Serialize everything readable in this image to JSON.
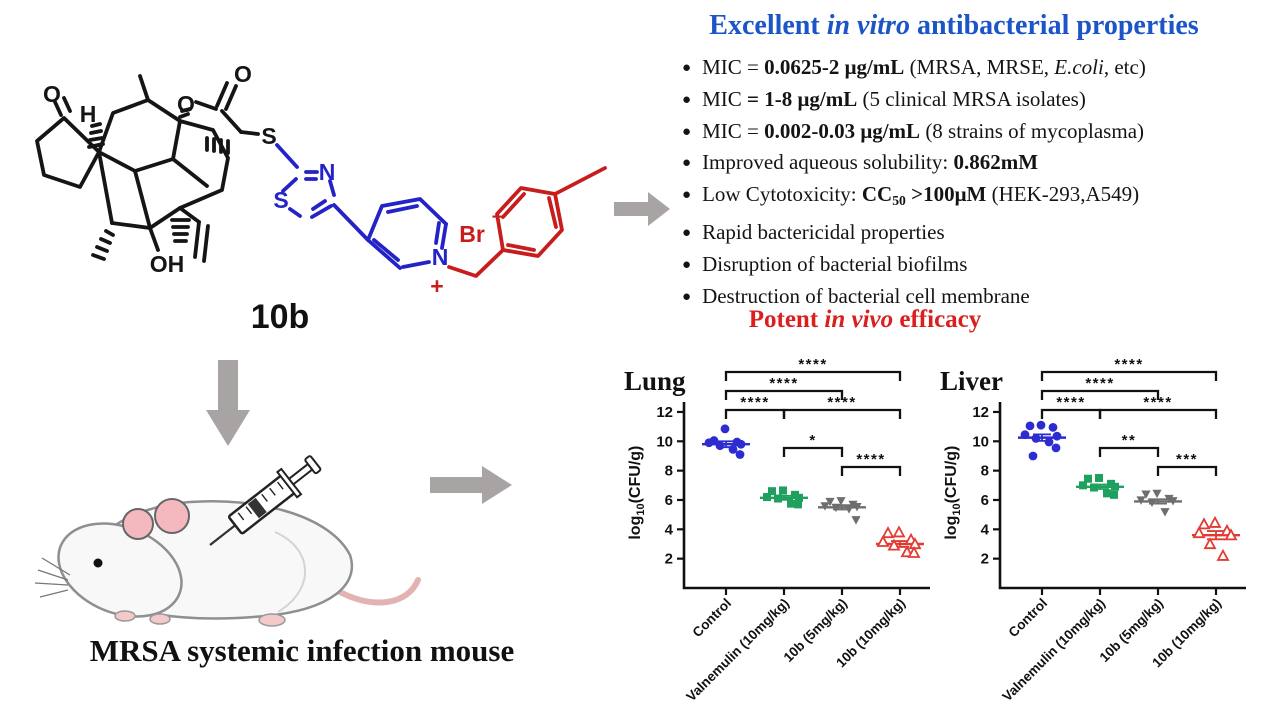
{
  "colors": {
    "accent_blue": "#1b55c8",
    "accent_red": "#da1f1f",
    "structure_black": "#151515",
    "structure_blue": "#2323c8",
    "structure_red": "#c81d1d",
    "arrow_gray": "#a9a4a4"
  },
  "structure": {
    "compound_label": "10b",
    "atoms": {
      "ketone_o": "O",
      "stereo_h": "H",
      "ester_o": "O",
      "carbonyl_o": "O",
      "thioether_s": "S",
      "hydroxyl": "OH",
      "thiazole_s": "S",
      "thiazole_n": "N",
      "pyridinium_n": "N",
      "pyridinium_charge": "+",
      "bromide": "Br",
      "bromide_charge": "−"
    }
  },
  "in_vitro": {
    "color": "#1b55c8",
    "title_segments": [
      {
        "t": "Excellent "
      },
      {
        "t": "in vitro",
        "i": true
      },
      {
        "t": " antibacterial properties"
      }
    ],
    "bullets": [
      {
        "segments": [
          {
            "t": "MIC = "
          },
          {
            "t": "0.0625-2 μg/mL",
            "b": true
          },
          {
            "t": " (MRSA, MRSE, "
          },
          {
            "t": "E.coli",
            "i": true
          },
          {
            "t": ", etc)"
          }
        ]
      },
      {
        "segments": [
          {
            "t": "MIC "
          },
          {
            "t": "= 1-8 μg/mL",
            "b": true
          },
          {
            "t": " (5 clinical MRSA isolates)"
          }
        ]
      },
      {
        "segments": [
          {
            "t": "MIC = "
          },
          {
            "t": "0.002-0.03 μg/mL",
            "b": true
          },
          {
            "t": " (8 strains of mycoplasma)"
          }
        ]
      },
      {
        "segments": [
          {
            "t": "Improved aqueous solubility: "
          },
          {
            "t": "0.862mM",
            "b": true
          }
        ]
      },
      {
        "segments": [
          {
            "t": "Low Cytotoxicity: "
          },
          {
            "t": "CC",
            "b": true
          },
          {
            "t": "50",
            "b": true,
            "sub": true
          },
          {
            "t": " >100μM",
            "b": true
          },
          {
            "t": " (HEK-293,A549)"
          }
        ]
      },
      {
        "segments": [
          {
            "t": "Rapid bactericidal properties"
          }
        ]
      },
      {
        "segments": [
          {
            "t": "Disruption of bacterial biofilms"
          }
        ]
      },
      {
        "segments": [
          {
            "t": "Destruction of bacterial cell membrane"
          }
        ]
      }
    ]
  },
  "in_vivo": {
    "color": "#da1f1f",
    "title_segments": [
      {
        "t": "Potent "
      },
      {
        "t": "in vivo",
        "i": true
      },
      {
        "t": " efficacy"
      }
    ]
  },
  "mouse": {
    "caption": "MRSA systemic infection mouse"
  },
  "chart_data": [
    {
      "type": "scatter",
      "title": "Lung",
      "ylabel_parts": {
        "pre": "log",
        "sub": "10",
        "rest": "(CFU/g)"
      },
      "ylim": [
        0,
        12
      ],
      "yticks": [
        2,
        4,
        6,
        8,
        10,
        12
      ],
      "grid": false,
      "categories": [
        "Control",
        "Valnemulin (10mg/kg)",
        "10b (5mg/kg)",
        "10b (10mg/kg)"
      ],
      "groups": [
        {
          "name": "Control",
          "marker": "circle",
          "color": "#2c2cd0",
          "mean": 9.8,
          "sem": 0.2,
          "values": [
            10.85,
            10.05,
            9.95,
            9.9,
            9.8,
            9.7,
            9.45,
            9.1
          ]
        },
        {
          "name": "Valnemulin (10mg/kg)",
          "marker": "square",
          "color": "#1fa05f",
          "mean": 6.15,
          "sem": 0.14,
          "values": [
            6.65,
            6.6,
            6.35,
            6.2,
            6.15,
            6.1,
            5.75,
            5.7
          ]
        },
        {
          "name": "10b (5mg/kg)",
          "marker": "triangle-down",
          "color": "#6e6e6e",
          "mean": 5.5,
          "sem": 0.15,
          "values": [
            5.95,
            5.9,
            5.7,
            5.6,
            5.55,
            5.5,
            5.4,
            4.65
          ]
        },
        {
          "name": "10b (10mg/kg)",
          "marker": "triangle-up-open",
          "color": "#e23b33",
          "mean": 3.0,
          "sem": 0.2,
          "values": [
            3.8,
            3.75,
            3.3,
            3.15,
            3.0,
            2.9,
            2.45,
            2.4
          ]
        }
      ],
      "significance": [
        {
          "from": 0,
          "to": 3,
          "label": "****",
          "row": 0
        },
        {
          "from": 0,
          "to": 2,
          "label": "****",
          "row": 1
        },
        {
          "from": 0,
          "to": 1,
          "label": "****",
          "row": 2
        },
        {
          "from": 1,
          "to": 3,
          "label": "****",
          "row": 2
        },
        {
          "from": 1,
          "to": 2,
          "label": "*",
          "row": 3
        },
        {
          "from": 2,
          "to": 3,
          "label": "****",
          "row": 4
        }
      ]
    },
    {
      "type": "scatter",
      "title": "Liver",
      "ylabel_parts": {
        "pre": "log",
        "sub": "10",
        "rest": "(CFU/g)"
      },
      "ylim": [
        0,
        12
      ],
      "yticks": [
        2,
        4,
        6,
        8,
        10,
        12
      ],
      "grid": false,
      "categories": [
        "Control",
        "Valnemulin (10mg/kg)",
        "10b (5mg/kg)",
        "10b (10mg/kg)"
      ],
      "groups": [
        {
          "name": "Control",
          "marker": "circle",
          "color": "#2c2cd0",
          "mean": 10.25,
          "sem": 0.22,
          "values": [
            11.1,
            11.05,
            10.95,
            10.45,
            10.35,
            10.2,
            9.95,
            9.55,
            9.0
          ]
        },
        {
          "name": "Valnemulin (10mg/kg)",
          "marker": "square",
          "color": "#1fa05f",
          "mean": 6.9,
          "sem": 0.15,
          "values": [
            7.5,
            7.45,
            7.1,
            7.0,
            6.9,
            6.85,
            6.45,
            6.35
          ]
        },
        {
          "name": "10b (5mg/kg)",
          "marker": "triangle-down",
          "color": "#6e6e6e",
          "mean": 5.9,
          "sem": 0.15,
          "values": [
            6.45,
            6.4,
            6.1,
            6.0,
            5.95,
            5.85,
            5.2
          ]
        },
        {
          "name": "10b (10mg/kg)",
          "marker": "triangle-up-open",
          "color": "#e23b33",
          "mean": 3.6,
          "sem": 0.28,
          "values": [
            4.45,
            4.35,
            3.9,
            3.75,
            3.6,
            3.0,
            2.2
          ]
        }
      ],
      "significance": [
        {
          "from": 0,
          "to": 3,
          "label": "****",
          "row": 0
        },
        {
          "from": 0,
          "to": 2,
          "label": "****",
          "row": 1
        },
        {
          "from": 0,
          "to": 1,
          "label": "****",
          "row": 2
        },
        {
          "from": 1,
          "to": 3,
          "label": "****",
          "row": 2
        },
        {
          "from": 1,
          "to": 2,
          "label": "**",
          "row": 3
        },
        {
          "from": 2,
          "to": 3,
          "label": "***",
          "row": 4
        }
      ]
    }
  ]
}
